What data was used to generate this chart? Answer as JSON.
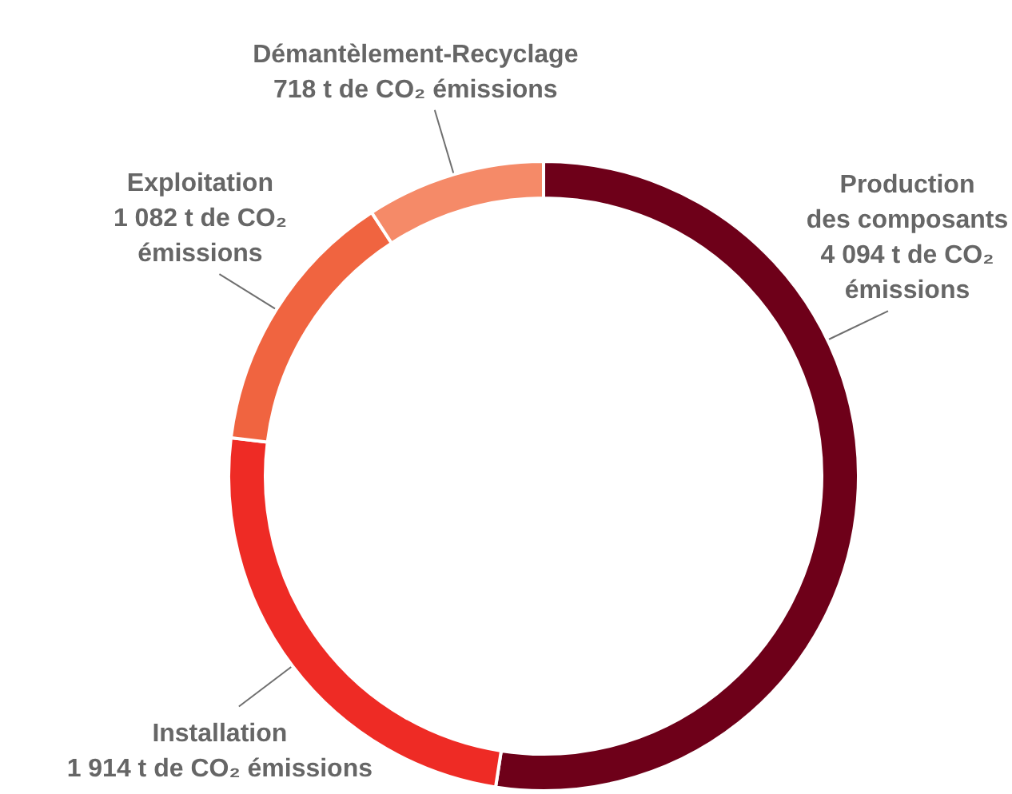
{
  "chart_data": {
    "type": "donut",
    "categories": [
      "Production\ndes composants",
      "Installation",
      "Exploitation",
      "Démantèlement-Recyclage"
    ],
    "values": [
      4094,
      1914,
      1082,
      718
    ],
    "colors": [
      "#6e0019",
      "#ee2b25",
      "#f06440",
      "#f58a68"
    ],
    "value_labels": [
      "4 094 t de CO₂\némissions",
      "1 914 t de CO₂ émissions",
      "1 082 t de CO₂\némissions",
      "718 t de CO₂ émissions"
    ]
  }
}
